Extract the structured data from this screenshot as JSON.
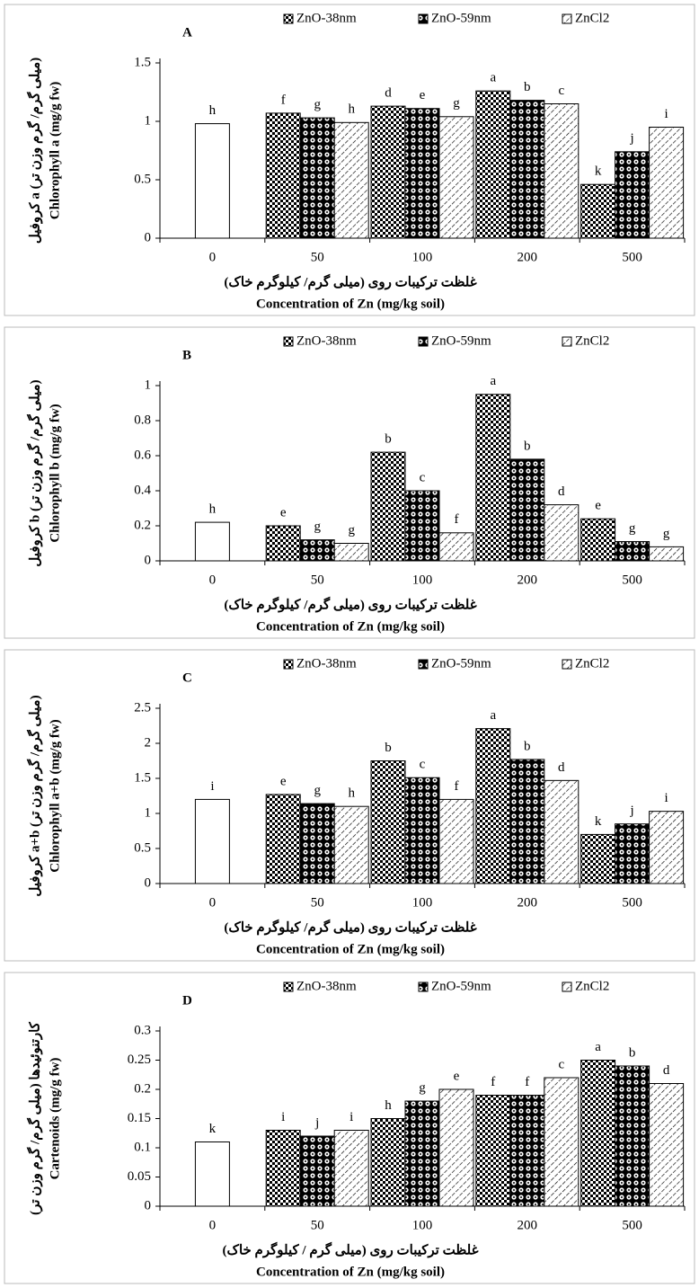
{
  "chart_data": [
    {
      "type": "bar",
      "panel": "A",
      "y_label_fa": "کروفیل a (میلی گرم/ گرم وزن تر)",
      "y_label": "Chlorophyll a (mg/g fw)",
      "x_label_fa": "غلظت ترکیبات روی (میلی گرم/ کیلوگرم خاک)",
      "x_label": "Concentration of Zn (mg/kg soil)",
      "categories": [
        "0",
        "50",
        "100",
        "200",
        "500"
      ],
      "ylim": [
        0,
        1.5
      ],
      "yticks": [
        0,
        0.5,
        1,
        1.5
      ],
      "series": [
        {
          "pattern": "none",
          "color": "#000000",
          "values": [
            0.98,
            null,
            null,
            null,
            null
          ],
          "letters": [
            "h",
            null,
            null,
            null,
            null
          ]
        },
        {
          "name": "ZnO-38nm",
          "pattern": "checker",
          "color": "#000000",
          "values": [
            null,
            1.07,
            1.13,
            1.26,
            0.46
          ],
          "letters": [
            null,
            "f",
            "d",
            "a",
            "k"
          ]
        },
        {
          "name": "ZnO-59nm",
          "pattern": "dots",
          "color": "#000000",
          "values": [
            null,
            1.03,
            1.11,
            1.18,
            0.74
          ],
          "letters": [
            null,
            "g",
            "e",
            "b",
            "j"
          ]
        },
        {
          "name": "ZnCl2",
          "pattern": "hatch",
          "color": "#000000",
          "values": [
            null,
            0.99,
            1.04,
            1.15,
            0.95
          ],
          "letters": [
            null,
            "h",
            "g",
            "c",
            "i"
          ]
        }
      ]
    },
    {
      "type": "bar",
      "panel": "B",
      "y_label_fa": "کروفیل b (میلی گرم/ گرم وزن تر)",
      "y_label": "Chlorophyll b (mg/g fw)",
      "x_label_fa": "غلظت ترکیبات روی (میلی گرم/ کیلوگرم خاک)",
      "x_label": "Concentration of Zn (mg/kg soil)",
      "categories": [
        "0",
        "50",
        "100",
        "200",
        "500"
      ],
      "ylim": [
        0,
        1
      ],
      "yticks": [
        0,
        0.2,
        0.4,
        0.6,
        0.8,
        1
      ],
      "series": [
        {
          "pattern": "none",
          "color": "#000000",
          "values": [
            0.22,
            null,
            null,
            null,
            null
          ],
          "letters": [
            "h",
            null,
            null,
            null,
            null
          ]
        },
        {
          "name": "ZnO-38nm",
          "pattern": "checker",
          "color": "#000000",
          "values": [
            null,
            0.2,
            0.62,
            0.95,
            0.24
          ],
          "letters": [
            null,
            "e",
            "b",
            "a",
            "e"
          ]
        },
        {
          "name": "ZnO-59nm",
          "pattern": "dots",
          "color": "#000000",
          "values": [
            null,
            0.12,
            0.4,
            0.58,
            0.11
          ],
          "letters": [
            null,
            "g",
            "c",
            "b",
            "g"
          ]
        },
        {
          "name": "ZnCl2",
          "pattern": "hatch",
          "color": "#000000",
          "values": [
            null,
            0.1,
            0.16,
            0.32,
            0.08
          ],
          "letters": [
            null,
            "g",
            "f",
            "d",
            "g"
          ]
        }
      ]
    },
    {
      "type": "bar",
      "panel": "C",
      "y_label_fa": "کروفیل a+b (میلی گرم/ گرم وزن تر)",
      "y_label": "Chlorophyll a+b (mg/g fw)",
      "x_label_fa": "غلظت ترکیبات روی (میلی گرم/ کیلوگرم خاک)",
      "x_label": "Concentration of Zn (mg/kg soil)",
      "categories": [
        "0",
        "50",
        "100",
        "200",
        "500"
      ],
      "ylim": [
        0,
        2.5
      ],
      "yticks": [
        0,
        0.5,
        1,
        1.5,
        2,
        2.5
      ],
      "series": [
        {
          "pattern": "none",
          "color": "#000000",
          "values": [
            1.2,
            null,
            null,
            null,
            null
          ],
          "letters": [
            "i",
            null,
            null,
            null,
            null
          ]
        },
        {
          "name": "ZnO-38nm",
          "pattern": "checker",
          "color": "#000000",
          "values": [
            null,
            1.27,
            1.75,
            2.21,
            0.7
          ],
          "letters": [
            null,
            "e",
            "b",
            "a",
            "k"
          ]
        },
        {
          "name": "ZnO-59nm",
          "pattern": "dots",
          "color": "#000000",
          "values": [
            null,
            1.14,
            1.51,
            1.77,
            0.85
          ],
          "letters": [
            null,
            "g",
            "c",
            "b",
            "j"
          ]
        },
        {
          "name": "ZnCl2",
          "pattern": "hatch",
          "color": "#000000",
          "values": [
            null,
            1.1,
            1.2,
            1.47,
            1.03
          ],
          "letters": [
            null,
            "h",
            "f",
            "d",
            "i"
          ]
        }
      ]
    },
    {
      "type": "bar",
      "panel": "D",
      "y_label_fa": "کارتنوئیدها (میلی گرم/ گرم وزن تر)",
      "y_label": "Cartenoids (mg/g fw)",
      "x_label_fa": "غلظت ترکیبات روی (میلی گرم / کیلوگرم خاک)",
      "x_label": "Concentration of Zn (mg/kg soil)",
      "categories": [
        "0",
        "50",
        "100",
        "200",
        "500"
      ],
      "ylim": [
        0,
        0.3
      ],
      "yticks": [
        0,
        0.05,
        0.1,
        0.15,
        0.2,
        0.25,
        0.3
      ],
      "series": [
        {
          "pattern": "none",
          "color": "#000000",
          "values": [
            0.11,
            null,
            null,
            null,
            null
          ],
          "letters": [
            "k",
            null,
            null,
            null,
            null
          ]
        },
        {
          "name": "ZnO-38nm",
          "pattern": "checker",
          "color": "#000000",
          "values": [
            null,
            0.13,
            0.15,
            0.19,
            0.25
          ],
          "letters": [
            null,
            "i",
            "h",
            "f",
            "a"
          ]
        },
        {
          "name": "ZnO-59nm",
          "pattern": "dots",
          "color": "#000000",
          "values": [
            null,
            0.12,
            0.18,
            0.19,
            0.24
          ],
          "letters": [
            null,
            "j",
            "g",
            "f",
            "b"
          ]
        },
        {
          "name": "ZnCl2",
          "pattern": "hatch",
          "color": "#000000",
          "values": [
            null,
            0.13,
            0.2,
            0.22,
            0.21
          ],
          "letters": [
            null,
            "i",
            "e",
            "c",
            "d"
          ]
        }
      ]
    }
  ]
}
